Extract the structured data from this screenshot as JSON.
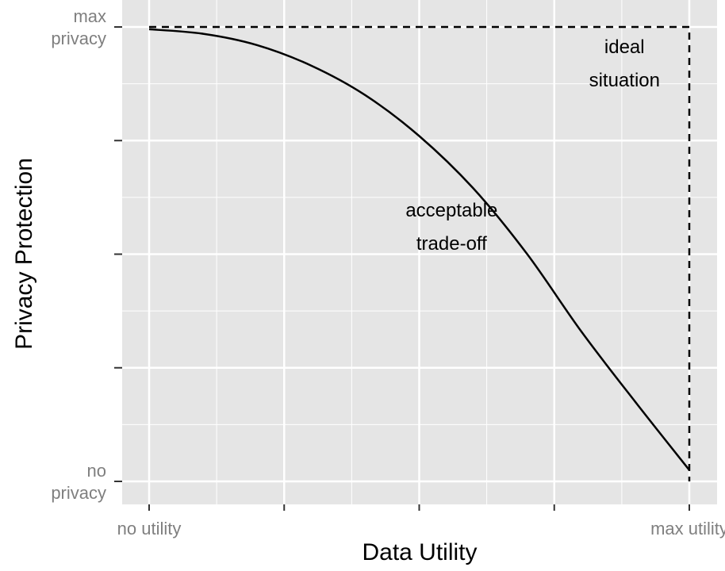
{
  "chart_data": {
    "type": "line",
    "xlabel": "Data Utility",
    "ylabel": "Privacy Protection",
    "xlim": [
      0,
      1
    ],
    "ylim": [
      0,
      1
    ],
    "x_ticks": [
      0,
      0.25,
      0.5,
      0.75,
      1
    ],
    "y_ticks": [
      0,
      0.25,
      0.5,
      0.75,
      1
    ],
    "x_tick_labels": [
      [
        "no utility"
      ],
      [
        ""
      ],
      [
        ""
      ],
      [
        ""
      ],
      [
        "max utility"
      ]
    ],
    "y_tick_labels": [
      [
        "no",
        "privacy"
      ],
      [
        ""
      ],
      [
        ""
      ],
      [
        ""
      ],
      [
        "max",
        "privacy"
      ]
    ],
    "grid": true,
    "series": [
      {
        "style": "solid",
        "x": [
          0,
          0.1,
          0.2,
          0.3,
          0.4,
          0.5,
          0.6,
          0.7,
          0.8,
          0.9,
          1.0
        ],
        "y": [
          0.995,
          0.985,
          0.96,
          0.915,
          0.85,
          0.76,
          0.645,
          0.5,
          0.33,
          0.175,
          0.025
        ]
      },
      {
        "style": "dashed",
        "x": [
          0,
          1,
          1
        ],
        "y": [
          1,
          1,
          0
        ]
      }
    ],
    "annotations": [
      {
        "lines": [
          "ideal",
          "situation"
        ],
        "x": 0.88,
        "y": 0.92
      },
      {
        "lines": [
          "acceptable",
          "trade-off"
        ],
        "x": 0.56,
        "y": 0.56
      }
    ],
    "colors": {
      "panel_bg": "#e5e5e5",
      "grid": "#ffffff",
      "line": "#000000",
      "tick_text": "#7f7f7f",
      "tick_mark": "#333333"
    }
  }
}
